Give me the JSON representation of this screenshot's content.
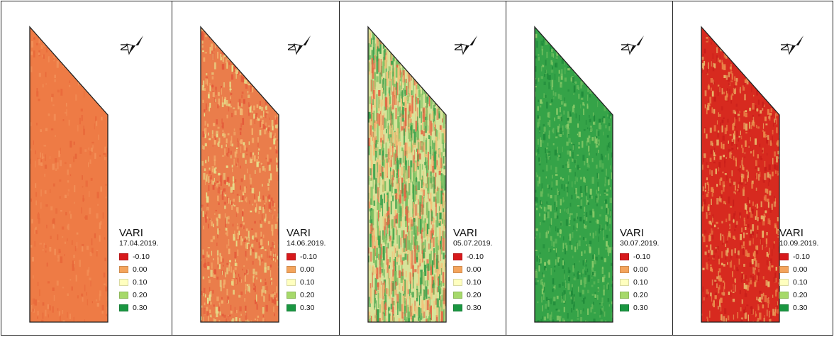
{
  "legend_classes": [
    {
      "label": "-0.10",
      "color": "#d7191c"
    },
    {
      "label": "0.00",
      "color": "#f4a45c"
    },
    {
      "label": "0.10",
      "color": "#ffffbf"
    },
    {
      "label": "0.20",
      "color": "#a6d96a"
    },
    {
      "label": "0.30",
      "color": "#1a9641"
    }
  ],
  "panels": [
    {
      "title": "VARI",
      "date": "17.04.2019.",
      "fill_base": "#ee7b45",
      "fill_patches": [
        "#f29058",
        "#e8683a"
      ],
      "patch_density": "low"
    },
    {
      "title": "VARI",
      "date": "14.06.2019.",
      "fill_base": "#ea7d4b",
      "fill_patches": [
        "#f2b26d",
        "#e6e08c",
        "#e4593a"
      ],
      "patch_density": "medium"
    },
    {
      "title": "VARI",
      "date": "05.07.2019.",
      "fill_base": "#d8e39a",
      "fill_patches": [
        "#3da24c",
        "#7fc163",
        "#e36a46",
        "#f3c27a"
      ],
      "patch_density": "high"
    },
    {
      "title": "VARI",
      "date": "30.07.2019.",
      "fill_base": "#35a348",
      "fill_patches": [
        "#63b85a",
        "#1f8a3a",
        "#8ccb6a"
      ],
      "patch_density": "medium"
    },
    {
      "title": "VARI",
      "date": "10.09.2019.",
      "fill_base": "#d72a1f",
      "fill_patches": [
        "#e8b86a",
        "#ea8a4a",
        "#c81e1a"
      ],
      "patch_density": "medium"
    }
  ],
  "north_arrow_icon": "north-arrow-icon",
  "north_arrow_label": "N"
}
